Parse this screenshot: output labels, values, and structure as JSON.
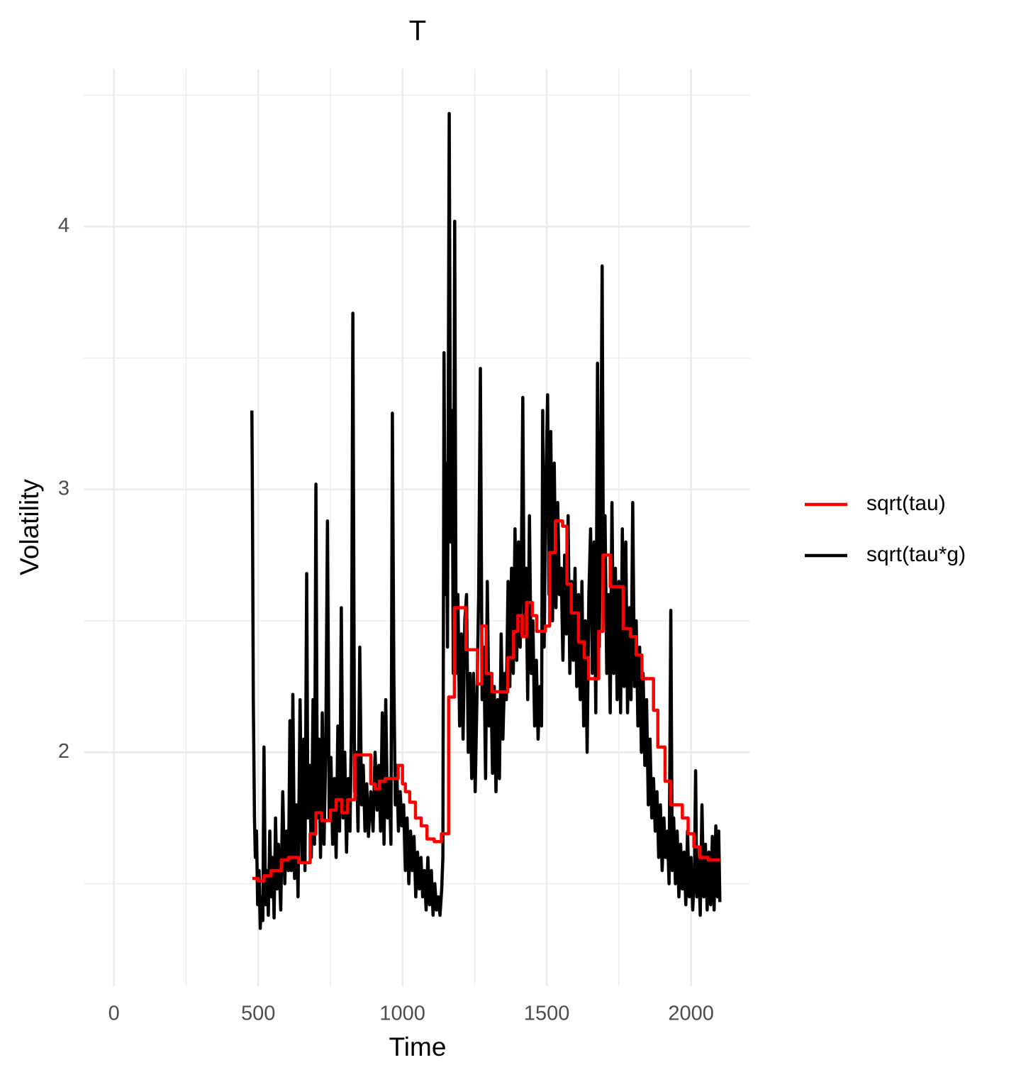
{
  "chart_data": {
    "type": "line",
    "title": "T",
    "x_label": "Time",
    "y_label": "Volatility",
    "xlim": [
      -105,
      2205
    ],
    "ylim": [
      1.11,
      4.6
    ],
    "xticks": [
      0,
      500,
      1000,
      1500,
      2000
    ],
    "yticks": [
      2,
      3,
      4
    ],
    "xminorticks": [
      250,
      750,
      1250,
      1750
    ],
    "yminorticks": [
      1.5,
      2.5,
      3.5,
      4.5
    ],
    "grid": true,
    "legend_position": "right",
    "series": [
      {
        "name": "sqrt(tau)",
        "color": "#ff0000",
        "x": [
          480,
          500,
          500,
          520,
          520,
          545,
          545,
          580,
          580,
          605,
          605,
          640,
          640,
          680,
          680,
          700,
          700,
          720,
          720,
          750,
          750,
          770,
          770,
          790,
          790,
          810,
          810,
          835,
          835,
          890,
          890,
          905,
          905,
          920,
          920,
          940,
          940,
          985,
          985,
          1000,
          1000,
          1010,
          1010,
          1025,
          1025,
          1045,
          1045,
          1065,
          1065,
          1085,
          1085,
          1110,
          1110,
          1135,
          1135,
          1160,
          1160,
          1180,
          1180,
          1220,
          1220,
          1260,
          1260,
          1275,
          1275,
          1290,
          1290,
          1310,
          1310,
          1365,
          1365,
          1385,
          1385,
          1400,
          1400,
          1415,
          1415,
          1430,
          1430,
          1450,
          1450,
          1465,
          1465,
          1495,
          1495,
          1510,
          1510,
          1530,
          1530,
          1555,
          1555,
          1570,
          1570,
          1585,
          1585,
          1610,
          1610,
          1630,
          1630,
          1645,
          1645,
          1680,
          1680,
          1695,
          1695,
          1720,
          1720,
          1765,
          1765,
          1790,
          1790,
          1810,
          1810,
          1830,
          1830,
          1870,
          1870,
          1885,
          1885,
          1910,
          1910,
          1930,
          1930,
          1970,
          1970,
          1990,
          1990,
          2010,
          2010,
          2030,
          2030,
          2060,
          2060,
          2100
        ],
        "values": [
          1.52,
          1.52,
          1.51,
          1.51,
          1.53,
          1.53,
          1.55,
          1.55,
          1.59,
          1.59,
          1.6,
          1.6,
          1.58,
          1.58,
          1.69,
          1.69,
          1.77,
          1.77,
          1.74,
          1.74,
          1.78,
          1.78,
          1.82,
          1.82,
          1.77,
          1.77,
          1.82,
          1.82,
          1.99,
          1.99,
          1.88,
          1.88,
          1.86,
          1.86,
          1.89,
          1.89,
          1.9,
          1.9,
          1.95,
          1.95,
          1.88,
          1.88,
          1.85,
          1.85,
          1.81,
          1.81,
          1.75,
          1.75,
          1.72,
          1.72,
          1.67,
          1.67,
          1.66,
          1.66,
          1.69,
          1.69,
          2.21,
          2.21,
          2.55,
          2.55,
          2.39,
          2.39,
          2.26,
          2.26,
          2.48,
          2.48,
          2.3,
          2.3,
          2.23,
          2.23,
          2.36,
          2.36,
          2.46,
          2.46,
          2.52,
          2.52,
          2.44,
          2.44,
          2.57,
          2.57,
          2.52,
          2.52,
          2.46,
          2.46,
          2.48,
          2.48,
          2.76,
          2.76,
          2.88,
          2.88,
          2.86,
          2.86,
          2.64,
          2.64,
          2.53,
          2.53,
          2.42,
          2.42,
          2.36,
          2.36,
          2.28,
          2.28,
          2.46,
          2.46,
          2.75,
          2.75,
          2.63,
          2.63,
          2.47,
          2.47,
          2.44,
          2.44,
          2.37,
          2.37,
          2.28,
          2.28,
          2.16,
          2.16,
          2.02,
          2.02,
          1.89,
          1.89,
          1.8,
          1.8,
          1.75,
          1.75,
          1.69,
          1.69,
          1.64,
          1.64,
          1.6,
          1.6,
          1.59,
          1.59
        ]
      },
      {
        "name": "sqrt(tau*g)",
        "color": "#000000",
        "x": [
          478,
          480,
          483,
          487,
          490,
          494,
          498,
          503,
          507,
          512,
          516,
          520,
          525,
          530,
          535,
          540,
          545,
          550,
          555,
          560,
          565,
          570,
          578,
          585,
          592,
          598,
          605,
          610,
          615,
          620,
          626,
          632,
          638,
          645,
          652,
          658,
          662,
          668,
          672,
          678,
          684,
          690,
          695,
          700,
          705,
          710,
          716,
          722,
          728,
          734,
          740,
          746,
          752,
          758,
          764,
          770,
          776,
          782,
          788,
          794,
          800,
          806,
          812,
          818,
          823,
          828,
          834,
          840,
          846,
          852,
          858,
          864,
          870,
          876,
          882,
          890,
          898,
          905,
          912,
          918,
          924,
          930,
          936,
          942,
          948,
          954,
          960,
          965,
          970,
          975,
          980,
          986,
          992,
          998,
          1004,
          1010,
          1016,
          1022,
          1028,
          1034,
          1040,
          1046,
          1052,
          1058,
          1064,
          1070,
          1076,
          1082,
          1088,
          1094,
          1100,
          1106,
          1112,
          1118,
          1124,
          1130,
          1136,
          1140,
          1144,
          1148,
          1152,
          1156,
          1162,
          1167,
          1172,
          1176,
          1181,
          1186,
          1192,
          1198,
          1204,
          1210,
          1216,
          1222,
          1228,
          1234,
          1240,
          1246,
          1252,
          1258,
          1264,
          1270,
          1276,
          1282,
          1288,
          1294,
          1300,
          1306,
          1312,
          1318,
          1324,
          1330,
          1336,
          1342,
          1348,
          1354,
          1360,
          1366,
          1372,
          1378,
          1384,
          1390,
          1396,
          1402,
          1408,
          1412,
          1417,
          1422,
          1428,
          1434,
          1440,
          1446,
          1452,
          1458,
          1464,
          1470,
          1476,
          1482,
          1486,
          1491,
          1496,
          1503,
          1508,
          1514,
          1520,
          1526,
          1532,
          1538,
          1544,
          1550,
          1556,
          1562,
          1568,
          1574,
          1580,
          1586,
          1592,
          1598,
          1604,
          1610,
          1616,
          1622,
          1628,
          1634,
          1640,
          1646,
          1652,
          1658,
          1664,
          1670,
          1676,
          1682,
          1688,
          1692,
          1697,
          1702,
          1708,
          1714,
          1720,
          1726,
          1732,
          1738,
          1744,
          1750,
          1756,
          1762,
          1768,
          1774,
          1780,
          1786,
          1792,
          1798,
          1804,
          1810,
          1816,
          1822,
          1828,
          1834,
          1840,
          1846,
          1852,
          1858,
          1864,
          1870,
          1876,
          1882,
          1888,
          1894,
          1900,
          1906,
          1912,
          1918,
          1924,
          1930,
          1935,
          1940,
          1946,
          1952,
          1958,
          1964,
          1970,
          1976,
          1982,
          1988,
          1994,
          2000,
          2006,
          2012,
          2016,
          2020,
          2026,
          2032,
          2038,
          2044,
          2050,
          2056,
          2062,
          2068,
          2074,
          2080,
          2086,
          2092,
          2096,
          2100
        ],
        "values": [
          3.3,
          2.95,
          2.2,
          1.75,
          1.6,
          1.7,
          1.42,
          1.55,
          1.33,
          1.45,
          1.36,
          2.02,
          1.42,
          1.55,
          1.38,
          1.7,
          1.45,
          1.6,
          1.37,
          1.75,
          1.48,
          1.65,
          1.4,
          1.85,
          1.5,
          1.7,
          1.55,
          2.12,
          1.55,
          2.22,
          1.52,
          1.8,
          1.45,
          2.2,
          1.58,
          2.05,
          1.55,
          2.68,
          1.75,
          1.95,
          1.6,
          2.2,
          1.65,
          3.02,
          1.75,
          2.05,
          1.6,
          2.15,
          1.65,
          2.0,
          2.88,
          1.75,
          1.98,
          1.65,
          1.9,
          1.6,
          2.1,
          1.7,
          2.55,
          1.75,
          2.0,
          1.62,
          1.9,
          1.7,
          2.1,
          3.67,
          1.85,
          2.0,
          1.7,
          2.4,
          1.8,
          1.95,
          1.7,
          1.88,
          1.68,
          1.85,
          1.7,
          2.0,
          1.78,
          1.95,
          1.7,
          2.15,
          1.65,
          2.2,
          1.75,
          1.9,
          1.65,
          3.29,
          2.3,
          1.8,
          1.95,
          1.7,
          1.85,
          1.72,
          1.8,
          1.55,
          1.75,
          1.5,
          1.7,
          1.55,
          1.68,
          1.45,
          1.62,
          1.48,
          1.6,
          1.45,
          1.55,
          1.4,
          1.6,
          1.42,
          1.55,
          1.38,
          1.5,
          1.4,
          1.45,
          1.38,
          1.48,
          1.6,
          3.52,
          2.6,
          3.1,
          2.4,
          4.43,
          2.8,
          3.3,
          2.3,
          4.02,
          2.3,
          2.6,
          2.1,
          2.45,
          2.05,
          2.5,
          2.6,
          2.0,
          2.3,
          1.9,
          2.3,
          1.85,
          2.2,
          2.6,
          3.46,
          2.2,
          2.4,
          1.9,
          2.65,
          2.1,
          2.3,
          1.92,
          2.25,
          1.85,
          2.2,
          1.9,
          2.45,
          2.05,
          2.3,
          2.2,
          2.65,
          2.25,
          2.7,
          2.3,
          2.85,
          2.35,
          2.8,
          2.4,
          2.7,
          3.35,
          2.45,
          2.7,
          2.2,
          2.9,
          2.3,
          2.5,
          2.1,
          2.35,
          2.05,
          2.25,
          2.1,
          3.3,
          2.4,
          2.95,
          3.36,
          2.6,
          3.22,
          2.5,
          3.1,
          2.55,
          2.95,
          2.6,
          2.7,
          2.35,
          2.75,
          2.45,
          2.9,
          2.3,
          2.65,
          2.35,
          2.7,
          2.25,
          2.6,
          2.2,
          2.65,
          2.1,
          2.5,
          2.0,
          2.6,
          2.85,
          2.3,
          2.8,
          2.15,
          3.48,
          2.4,
          3.1,
          3.85,
          2.5,
          2.9,
          2.3,
          2.6,
          2.15,
          2.95,
          2.3,
          2.7,
          2.2,
          2.65,
          2.15,
          2.85,
          2.25,
          2.8,
          2.15,
          2.55,
          2.2,
          2.95,
          2.25,
          2.5,
          2.1,
          2.4,
          2.0,
          2.3,
          1.95,
          2.2,
          1.8,
          2.05,
          1.75,
          1.9,
          1.7,
          1.85,
          1.6,
          1.8,
          1.55,
          1.75,
          1.6,
          1.7,
          1.5,
          2.54,
          1.55,
          1.75,
          1.5,
          1.7,
          1.45,
          1.65,
          1.48,
          1.62,
          1.42,
          1.7,
          1.45,
          1.6,
          1.4,
          1.55,
          1.93,
          1.45,
          1.6,
          1.38,
          1.8,
          1.45,
          1.65,
          1.4,
          1.62,
          1.42,
          1.68,
          1.4,
          1.72,
          1.45,
          1.7,
          1.43
        ]
      }
    ]
  }
}
